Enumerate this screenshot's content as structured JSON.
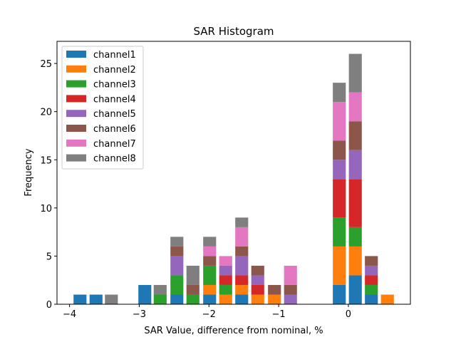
{
  "chart_data": {
    "type": "bar",
    "stacked": true,
    "title": "SAR Histogram",
    "xlabel": "SAR Value, difference from nominal, %",
    "ylabel": "Frequency",
    "xlim": [
      -4.18,
      0.89
    ],
    "ylim": [
      0,
      27.3
    ],
    "xticks": [
      -4,
      -3,
      -2,
      -1,
      0
    ],
    "xtick_labels": [
      "−4",
      "−3",
      "−2",
      "−1",
      "0"
    ],
    "yticks": [
      0,
      5,
      10,
      15,
      20,
      25
    ],
    "ytick_labels": [
      "0",
      "5",
      "10",
      "15",
      "20",
      "25"
    ],
    "grid": false,
    "legend_position": "top-left",
    "bin_width": 0.232,
    "bar_width_fraction": 0.8,
    "x": [
      -3.85,
      -3.62,
      -3.4,
      -2.92,
      -2.7,
      -2.46,
      -2.23,
      -1.99,
      -1.76,
      -1.53,
      -1.3,
      -1.06,
      -0.83,
      -0.13,
      0.1,
      0.33,
      0.56
    ],
    "series": [
      {
        "name": "channel1",
        "color": "#1f77b4",
        "values": [
          1,
          1,
          0,
          2,
          0,
          1,
          0,
          1,
          0,
          1,
          0,
          0,
          0,
          2,
          3,
          1,
          0
        ]
      },
      {
        "name": "channel2",
        "color": "#ff7f0e",
        "values": [
          0,
          0,
          0,
          0,
          0,
          0,
          0,
          1,
          1,
          1,
          1,
          1,
          0,
          4,
          3,
          0,
          1
        ]
      },
      {
        "name": "channel3",
        "color": "#2ca02c",
        "values": [
          0,
          0,
          0,
          0,
          1,
          2,
          1,
          2,
          1,
          0,
          0,
          0,
          0,
          3,
          2,
          1,
          0
        ]
      },
      {
        "name": "channel4",
        "color": "#d62728",
        "values": [
          0,
          0,
          0,
          0,
          0,
          0,
          0,
          0,
          1,
          1,
          1,
          0,
          0,
          4,
          5,
          1,
          0
        ]
      },
      {
        "name": "channel5",
        "color": "#9467bd",
        "values": [
          0,
          0,
          0,
          0,
          0,
          2,
          0,
          0,
          1,
          2,
          1,
          0,
          1,
          2,
          3,
          1,
          0
        ]
      },
      {
        "name": "channel6",
        "color": "#8c564b",
        "values": [
          0,
          0,
          0,
          0,
          0,
          1,
          1,
          1,
          0,
          1,
          1,
          1,
          1,
          2,
          3,
          1,
          0
        ]
      },
      {
        "name": "channel7",
        "color": "#e377c2",
        "values": [
          0,
          0,
          0,
          0,
          0,
          0,
          0,
          1,
          1,
          2,
          0,
          0,
          2,
          4,
          3,
          0,
          0
        ]
      },
      {
        "name": "channel8",
        "color": "#7f7f7f",
        "values": [
          0,
          0,
          1,
          0,
          1,
          1,
          2,
          1,
          0,
          1,
          0,
          0,
          0,
          2,
          4,
          0,
          0
        ]
      }
    ]
  }
}
